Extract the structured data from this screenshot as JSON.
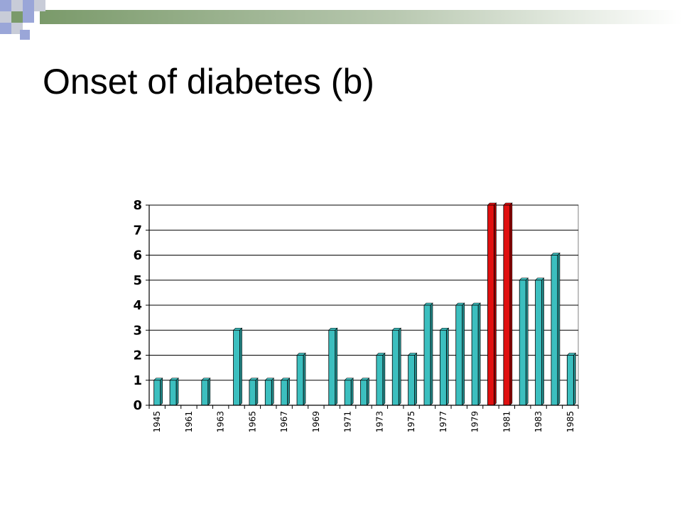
{
  "slide": {
    "title": "Onset of diabetes (b)"
  },
  "theme": {
    "bar_color": "#3cbfbf",
    "bar_dark": "#238c8c",
    "highlight_color": "#e01010",
    "highlight_dark": "#a00000",
    "grid_color": "#000000",
    "deco_green": "#7a9a6a",
    "deco_blue": "#9aa6d8",
    "deco_gray": "#c8ccd8"
  },
  "chart_data": {
    "type": "bar",
    "title": "",
    "xlabel": "",
    "ylabel": "",
    "ylim": [
      0,
      8
    ],
    "yticks": [
      0,
      1,
      2,
      3,
      4,
      5,
      6,
      7,
      8
    ],
    "grid": true,
    "legend": "none",
    "shown_category_labels": [
      "1945",
      "1961",
      "1963",
      "1965",
      "1967",
      "1969",
      "1971",
      "1973",
      "1975",
      "1977",
      "1979",
      "1981",
      "1983",
      "1985"
    ],
    "values": [
      1,
      1,
      0,
      1,
      0,
      3,
      1,
      1,
      1,
      2,
      0,
      3,
      1,
      1,
      2,
      3,
      2,
      4,
      3,
      4,
      4,
      8,
      8,
      5,
      5,
      6,
      2
    ],
    "highlighted_indices": [
      21,
      22
    ]
  }
}
